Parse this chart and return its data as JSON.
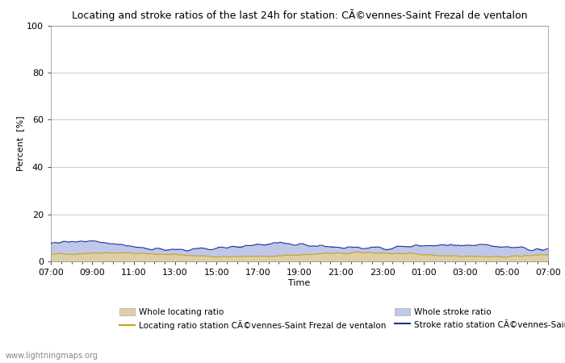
{
  "title": "Locating and stroke ratios of the last 24h for station: CÃ©vennes-Saint Frezal de ventalon",
  "ylabel": "Percent  [%]",
  "xlabel": "Time",
  "ylim": [
    0,
    100
  ],
  "yticks": [
    0,
    20,
    40,
    60,
    80,
    100
  ],
  "xtick_labels": [
    "07:00",
    "09:00",
    "11:00",
    "13:00",
    "15:00",
    "17:00",
    "19:00",
    "21:00",
    "23:00",
    "01:00",
    "03:00",
    "05:00",
    "07:00"
  ],
  "watermark": "www.lightningmaps.org",
  "locating_fill_color": "#ddd0a8",
  "stroke_fill_color": "#c0c8e8",
  "locating_line_color": "#c8a020",
  "stroke_line_color": "#2030a0",
  "background_color": "#ffffff",
  "grid_color": "#cccccc",
  "legend": {
    "whole_locating_label": "Whole locating ratio",
    "whole_stroke_label": "Whole stroke ratio",
    "locating_station_label": "Locating ratio station CÃ©vennes-Saint Frezal de ventalon",
    "stroke_station_label": "Stroke ratio station CÃ©vennes-Saint Frezal de ventalon"
  }
}
